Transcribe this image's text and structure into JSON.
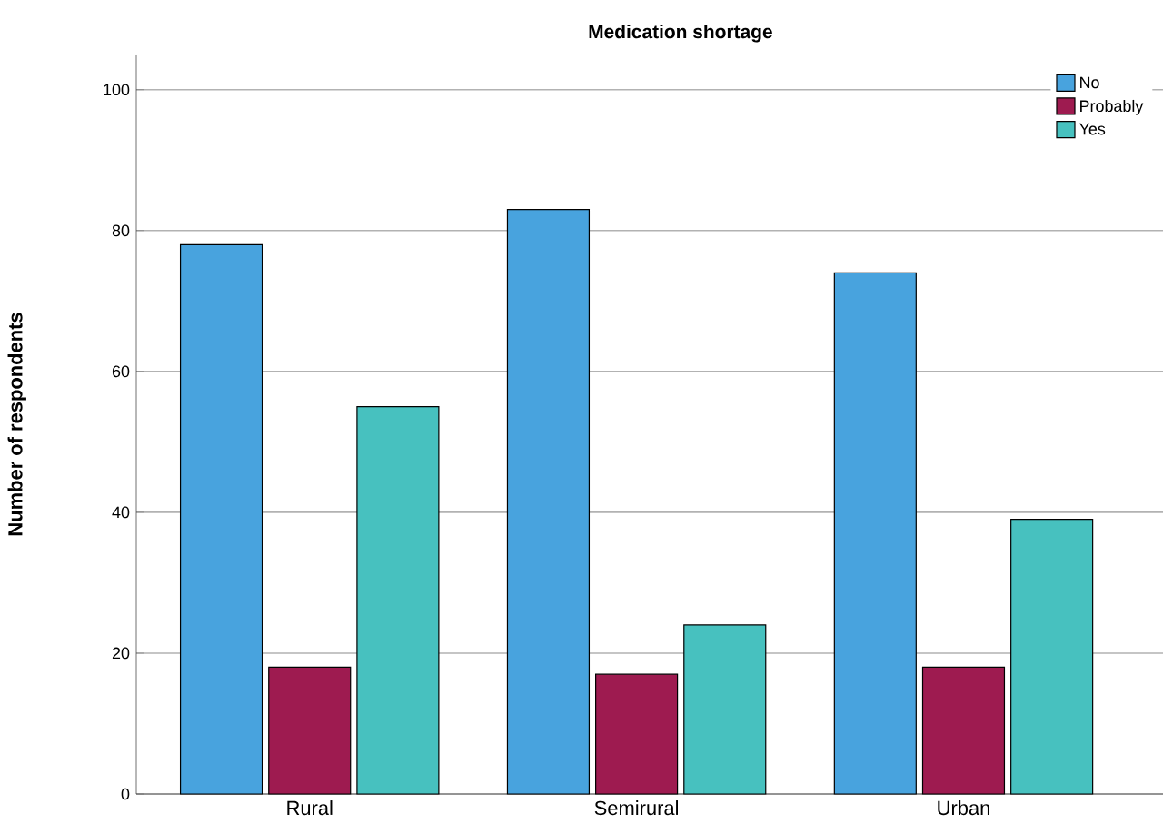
{
  "chart_data": {
    "type": "bar",
    "title": "Medication shortage",
    "ylabel": "Number of respondents",
    "categories": [
      "Rural",
      "Semirural",
      "Urban"
    ],
    "series": [
      {
        "name": "No",
        "color": "#48a3de",
        "values": [
          78,
          83,
          74
        ]
      },
      {
        "name": "Probably",
        "color": "#9e1b50",
        "values": [
          18,
          17,
          18
        ]
      },
      {
        "name": "Yes",
        "color": "#47c1bf",
        "values": [
          55,
          24,
          39
        ]
      }
    ],
    "ylim": [
      0,
      105
    ],
    "yticks": [
      0,
      20,
      40,
      60,
      80,
      100
    ],
    "grid": "y",
    "legend": "top right"
  }
}
